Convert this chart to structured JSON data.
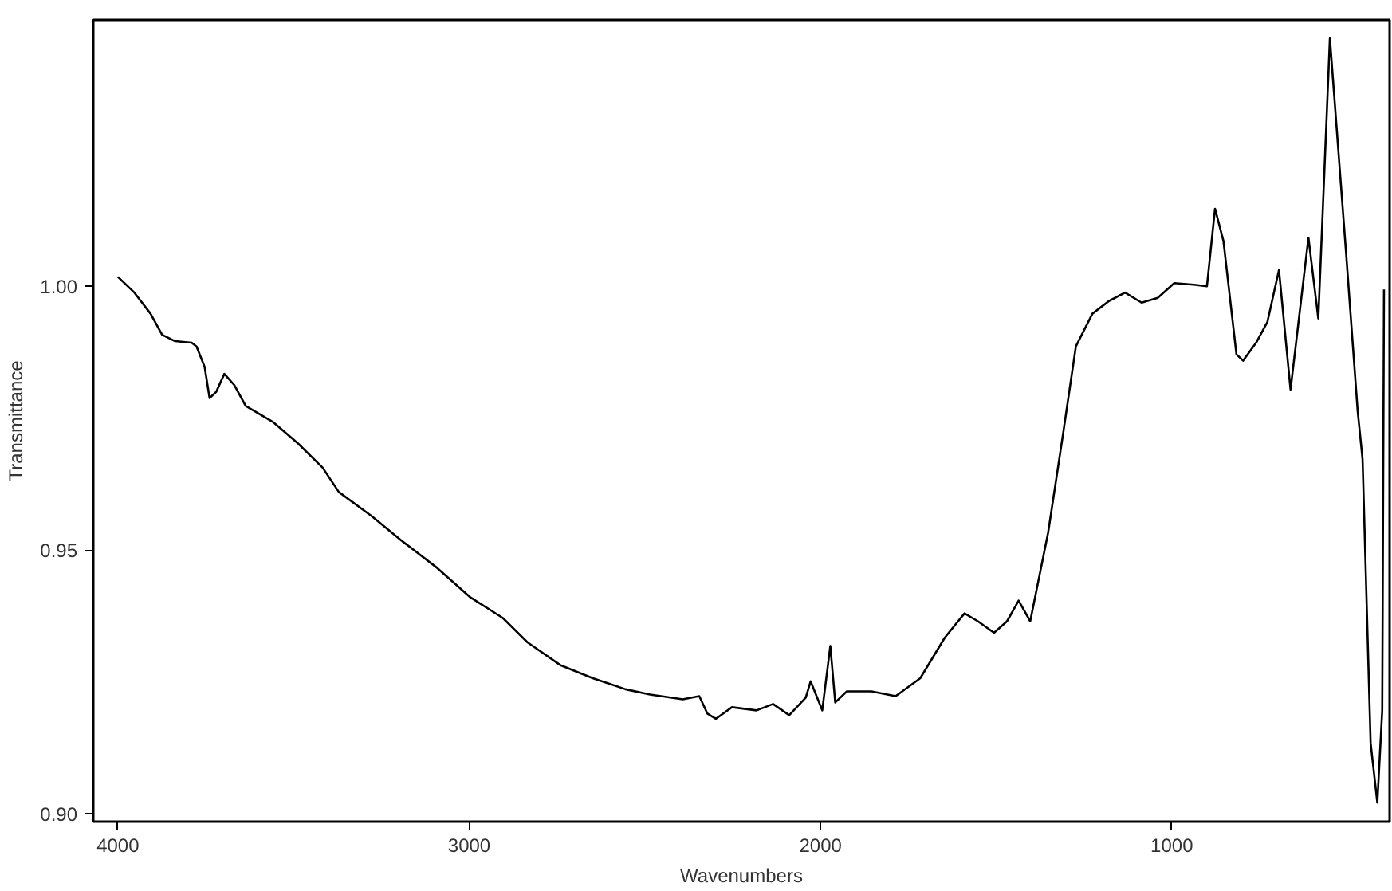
{
  "chart_data": {
    "type": "line",
    "xlabel": "Wavenumbers",
    "ylabel": "Transmittance",
    "xlim": [
      4070,
      380
    ],
    "ylim": [
      0.8985,
      1.0505
    ],
    "xticks": [
      4000,
      3000,
      2000,
      1000
    ],
    "yticks": [
      {
        "value": 0.9,
        "label": "0.90"
      },
      {
        "value": 0.95,
        "label": "0.95"
      },
      {
        "value": 1.0,
        "label": "1.00"
      }
    ],
    "grid": false,
    "marker": "none",
    "line_style": "solid",
    "series": [
      {
        "color": "#000000",
        "x": [
          4000,
          3953,
          3907,
          3874,
          3837,
          3790,
          3776,
          3753,
          3739,
          3720,
          3697,
          3669,
          3636,
          3557,
          3487,
          3417,
          3371,
          3277,
          3193,
          3091,
          2998,
          2904,
          2834,
          2741,
          2648,
          2555,
          2485,
          2392,
          2345,
          2322,
          2298,
          2252,
          2182,
          2135,
          2089,
          2042,
          2028,
          1995,
          1972,
          1958,
          1925,
          1855,
          1786,
          1716,
          1646,
          1590,
          1552,
          1506,
          1469,
          1436,
          1403,
          1389,
          1352,
          1310,
          1273,
          1226,
          1179,
          1133,
          1086,
          1040,
          993,
          937,
          900,
          877,
          853,
          816,
          797,
          760,
          728,
          695,
          662,
          611,
          583,
          550,
          503,
          471,
          457,
          434,
          415,
          401,
          396
        ],
        "values": [
          1.0018,
          0.9988,
          0.9948,
          0.9908,
          0.9896,
          0.9893,
          0.9886,
          0.9847,
          0.9788,
          0.98,
          0.9834,
          0.9813,
          0.9773,
          0.9742,
          0.9702,
          0.9656,
          0.961,
          0.9564,
          0.9518,
          0.9466,
          0.9411,
          0.9371,
          0.9325,
          0.9282,
          0.9257,
          0.9236,
          0.9226,
          0.9217,
          0.9223,
          0.919,
          0.918,
          0.9202,
          0.9196,
          0.9208,
          0.9187,
          0.922,
          0.9251,
          0.9196,
          0.9318,
          0.9211,
          0.9232,
          0.9232,
          0.9223,
          0.9257,
          0.9334,
          0.938,
          0.9365,
          0.9343,
          0.9365,
          0.9404,
          0.9365,
          0.9411,
          0.9533,
          0.9718,
          0.9886,
          0.9948,
          0.9972,
          0.9988,
          0.9969,
          0.9978,
          1.0006,
          1.0003,
          1.0,
          1.0147,
          1.0086,
          0.9871,
          0.9859,
          0.9893,
          0.9932,
          1.0031,
          0.9804,
          1.0092,
          0.9939,
          1.047,
          1.0055,
          0.9764,
          0.9672,
          0.9134,
          0.9021,
          0.9196,
          0.9994
        ]
      }
    ]
  }
}
